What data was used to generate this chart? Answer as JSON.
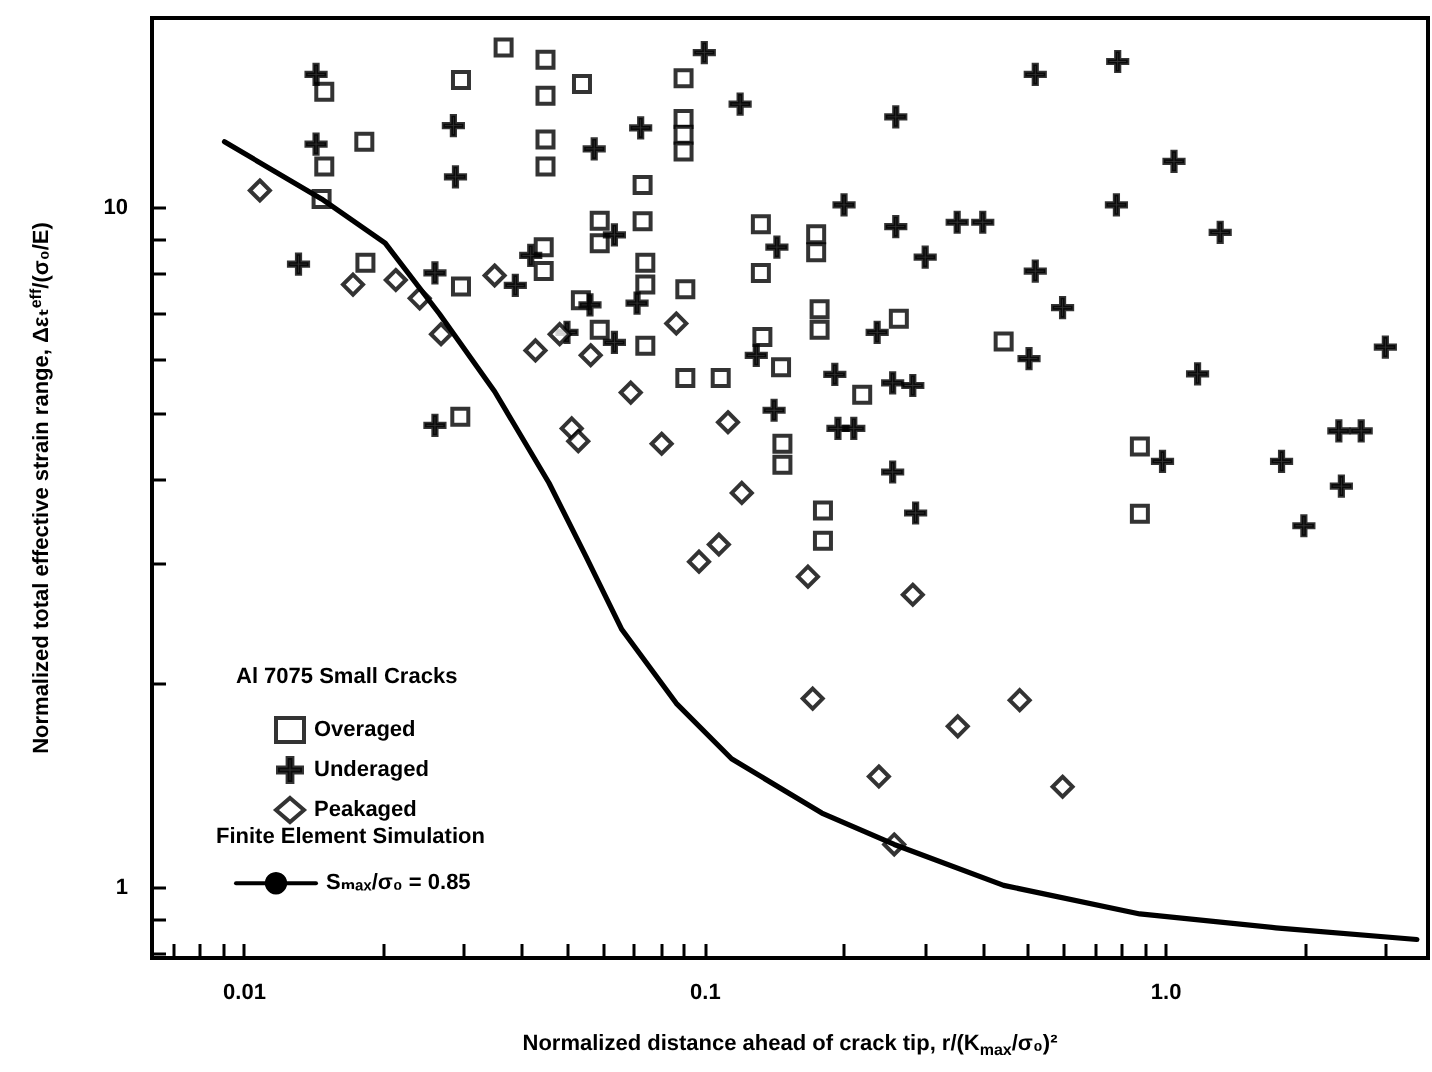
{
  "chart_data": {
    "type": "scatter",
    "xlabel": "Normalized distance ahead of crack tip, r/(K$_{max}$/σ₀)²",
    "ylabel": "Normalized total effective strain range, Δεₜ$^{eff}$/(σ₀/E)",
    "legend_title": "Al 7075 Small Cracks",
    "annotations": [
      "Finite Element Simulation"
    ],
    "log": "xy",
    "grid": false,
    "legend": "bottom left",
    "xlim": [
      0.0063,
      3.7
    ],
    "ylim": [
      0.79,
      19
    ],
    "xticks": [
      {
        "value": 0.007,
        "label": null
      },
      {
        "value": 0.008,
        "label": null
      },
      {
        "value": 0.009,
        "label": null
      },
      0.01,
      {
        "value": 0.02,
        "label": null
      },
      {
        "value": 0.03,
        "label": null
      },
      {
        "value": 0.04,
        "label": null
      },
      {
        "value": 0.05,
        "label": null
      },
      {
        "value": 0.06,
        "label": null
      },
      {
        "value": 0.07,
        "label": null
      },
      {
        "value": 0.08,
        "label": null
      },
      {
        "value": 0.09,
        "label": null
      },
      0.1,
      {
        "value": 0.2,
        "label": null
      },
      {
        "value": 0.3,
        "label": null
      },
      {
        "value": 0.4,
        "label": null
      },
      {
        "value": 0.5,
        "label": null
      },
      {
        "value": 0.6,
        "label": null
      },
      {
        "value": 0.7,
        "label": null
      },
      {
        "value": 0.8,
        "label": null
      },
      {
        "value": 0.9,
        "label": null
      },
      {
        "value": 1,
        "label": "1.0"
      },
      {
        "value": 2,
        "label": null
      },
      {
        "value": 3,
        "label": null
      }
    ],
    "yticks": [
      {
        "value": 0.8,
        "label": null
      },
      {
        "value": 0.9,
        "label": null
      },
      1,
      {
        "value": 2,
        "label": null
      },
      {
        "value": 3,
        "label": null
      },
      {
        "value": 4,
        "label": null
      },
      {
        "value": 5,
        "label": null
      },
      {
        "value": 6,
        "label": null
      },
      {
        "value": 7,
        "label": null
      },
      {
        "value": 8,
        "label": null
      },
      {
        "value": 9,
        "label": null
      },
      10
    ],
    "series": [
      {
        "name": "Overaged",
        "type": "scatter",
        "marker": "square",
        "color": "#000000",
        "x": [
          0.0149,
          0.0149,
          0.0147,
          0.0182,
          0.0183,
          0.0295,
          0.0295,
          0.0294,
          0.0365,
          0.045,
          0.045,
          0.045,
          0.045,
          0.0446,
          0.0446,
          0.054,
          0.059,
          0.059,
          0.0537,
          0.059,
          0.0731,
          0.0731,
          0.0741,
          0.0741,
          0.0741,
          0.0897,
          0.0897,
          0.0897,
          0.0897,
          0.0905,
          0.0905,
          0.108,
          0.132,
          0.132,
          0.133,
          0.146,
          0.174,
          0.174,
          0.177,
          0.177,
          0.147,
          0.147,
          0.18,
          0.18,
          0.263,
          0.219,
          0.444,
          0.877,
          0.877
        ],
        "values": [
          14.8,
          11.5,
          10.3,
          12.5,
          8.3,
          15.4,
          7.66,
          4.93,
          17.2,
          16.5,
          14.6,
          12.6,
          11.5,
          8.75,
          8.07,
          15.2,
          9.57,
          8.87,
          7.31,
          6.62,
          10.8,
          9.55,
          8.3,
          7.71,
          6.27,
          15.5,
          13.5,
          12.8,
          12.1,
          7.59,
          5.62,
          5.62,
          9.46,
          8.02,
          6.46,
          5.83,
          9.14,
          8.6,
          7.09,
          6.62,
          4.5,
          4.19,
          3.59,
          3.24,
          6.87,
          5.31,
          6.36,
          4.46,
          3.55
        ]
      },
      {
        "name": "Underaged",
        "type": "scatter",
        "marker": "cross",
        "color": "#000000",
        "x": [
          0.0143,
          0.0143,
          0.0131,
          0.0259,
          0.0259,
          0.0284,
          0.0287,
          0.0387,
          0.0418,
          0.0501,
          0.0562,
          0.0574,
          0.0635,
          0.0635,
          0.0724,
          0.0711,
          0.0995,
          0.119,
          0.143,
          0.129,
          0.141,
          0.191,
          0.2,
          0.194,
          0.21,
          0.236,
          0.259,
          0.259,
          0.255,
          0.282,
          0.255,
          0.286,
          0.3,
          0.352,
          0.4,
          0.52,
          0.52,
          0.504,
          0.596,
          0.785,
          0.78,
          1.04,
          1.31,
          1.17,
          0.982,
          1.78,
          1.99,
          2.37,
          2.65,
          2.4,
          2.99
        ],
        "values": [
          15.7,
          12.4,
          8.26,
          8.02,
          4.79,
          13.2,
          11.1,
          7.69,
          8.51,
          6.56,
          7.2,
          12.2,
          9.12,
          6.34,
          13.1,
          7.24,
          16.9,
          14.2,
          8.75,
          6.07,
          5.04,
          5.69,
          10.1,
          4.74,
          4.74,
          6.56,
          13.6,
          9.38,
          5.53,
          5.48,
          4.09,
          3.56,
          8.46,
          9.52,
          9.52,
          15.7,
          8.07,
          6.0,
          7.13,
          16.4,
          10.1,
          11.7,
          9.2,
          5.7,
          4.24,
          4.24,
          3.41,
          4.7,
          4.7,
          3.9,
          6.24
        ]
      },
      {
        "name": "Peakaged",
        "type": "scatter",
        "marker": "diamond",
        "color": "#000000",
        "x": [
          0.0108,
          0.0172,
          0.0213,
          0.024,
          0.0267,
          0.0349,
          0.0428,
          0.0483,
          0.0564,
          0.0513,
          0.053,
          0.0689,
          0.0804,
          0.0865,
          0.112,
          0.12,
          0.0969,
          0.107,
          0.167,
          0.282,
          0.171,
          0.353,
          0.481,
          0.238,
          0.596,
          0.257
        ],
        "values": [
          10.6,
          7.71,
          7.83,
          7.36,
          6.52,
          7.95,
          6.17,
          6.52,
          6.07,
          4.74,
          4.54,
          5.35,
          4.5,
          6.76,
          4.84,
          3.81,
          3.02,
          3.2,
          2.87,
          2.7,
          1.9,
          1.73,
          1.89,
          1.46,
          1.41,
          1.16
        ]
      },
      {
        "name": "Sₘₐₓ/σ₀ = 0.85",
        "type": "line",
        "marker": "none",
        "line_style": "solid",
        "color": "#000000",
        "x": [
          0.00905,
          0.0147,
          0.0202,
          0.0265,
          0.0349,
          0.0458,
          0.055,
          0.0659,
          0.0865,
          0.114,
          0.179,
          0.257,
          0.444,
          0.877,
          1.73,
          3.5
        ],
        "values": [
          12.5,
          10.3,
          8.87,
          6.98,
          5.37,
          3.94,
          3.08,
          2.4,
          1.87,
          1.55,
          1.29,
          1.16,
          1.01,
          0.917,
          0.875,
          0.841
        ]
      }
    ]
  }
}
